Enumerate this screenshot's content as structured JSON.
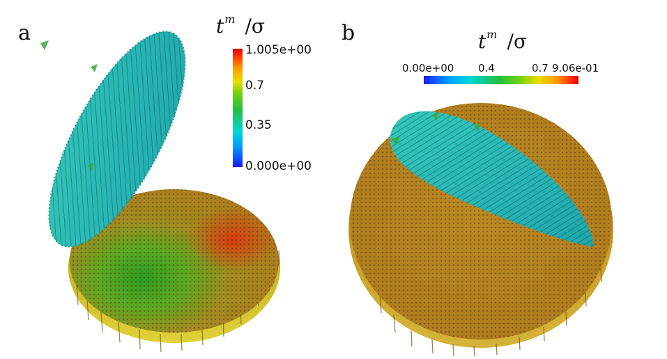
{
  "figure": {
    "panel_a": {
      "label": "a",
      "colorbar": {
        "title_base": "t",
        "title_sup": "m",
        "title_denom": "/σ",
        "ticks": [
          "1.005e+00",
          "0.7",
          "0.35",
          "0.000e+00"
        ]
      }
    },
    "panel_b": {
      "label": "b",
      "colorbar": {
        "title_base": "t",
        "title_sup": "m",
        "title_denom": "/σ",
        "ticks": [
          "0.00e+00",
          "0.4",
          "0.7",
          "9.06e-01"
        ]
      }
    }
  },
  "colors": {
    "ellipsoid": "#2bbfb8",
    "disk_orange": "#b58a22",
    "disk_green": "#4aa028",
    "disk_red": "#d63b10"
  }
}
